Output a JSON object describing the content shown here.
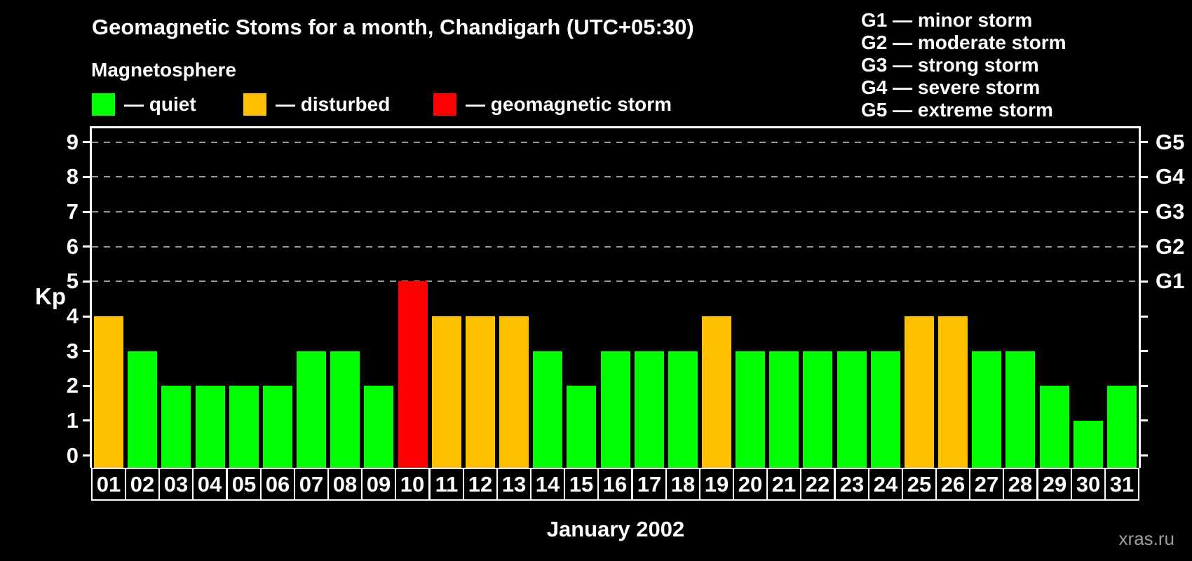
{
  "title": "Geomagnetic Stoms for a month, Chandigarh (UTC+05:30)",
  "subtitle": "Magnetosphere",
  "legend": {
    "quiet": "— quiet",
    "disturbed": "— disturbed",
    "storm": "— geomagnetic storm"
  },
  "g_legend": [
    "G1 — minor storm",
    "G2 — moderate storm",
    "G3 — strong storm",
    "G4 — severe storm",
    "G5 — extreme storm"
  ],
  "colors": {
    "quiet": "#00ff00",
    "disturbed": "#ffc000",
    "storm": "#ff0000",
    "background": "#000000",
    "axis": "#ffffff",
    "grid": "#999999",
    "watermark": "#9e9e9e"
  },
  "axis": {
    "ylabel": "Kp",
    "yticks": [
      0,
      1,
      2,
      3,
      4,
      5,
      6,
      7,
      8,
      9
    ],
    "right_labels": [
      {
        "text": "G1",
        "kp": 5
      },
      {
        "text": "G2",
        "kp": 6
      },
      {
        "text": "G3",
        "kp": 7
      },
      {
        "text": "G4",
        "kp": 8
      },
      {
        "text": "G5",
        "kp": 9
      }
    ],
    "xlabel": "January 2002"
  },
  "watermark": "xras.ru",
  "chart_data": {
    "type": "bar",
    "title": "Geomagnetic Stoms for a month, Chandigarh (UTC+05:30)",
    "xlabel": "January 2002",
    "ylabel": "Kp",
    "ylim": [
      -0.35,
      9.4
    ],
    "grid": "dashed horizontal at storm levels only",
    "gridlines_at": [
      5,
      6,
      7,
      8,
      9
    ],
    "legend_position": "top",
    "categories": [
      "01",
      "02",
      "03",
      "04",
      "05",
      "06",
      "07",
      "08",
      "09",
      "10",
      "11",
      "12",
      "13",
      "14",
      "15",
      "16",
      "17",
      "18",
      "19",
      "20",
      "21",
      "22",
      "23",
      "24",
      "25",
      "26",
      "27",
      "28",
      "29",
      "30",
      "31"
    ],
    "values": [
      4,
      3,
      2,
      2,
      2,
      2,
      3,
      3,
      2,
      5,
      4,
      4,
      4,
      3,
      2,
      3,
      3,
      3,
      4,
      3,
      3,
      3,
      3,
      3,
      4,
      4,
      3,
      3,
      2,
      1,
      2
    ],
    "conditions": [
      "disturbed",
      "quiet",
      "quiet",
      "quiet",
      "quiet",
      "quiet",
      "quiet",
      "quiet",
      "quiet",
      "storm",
      "disturbed",
      "disturbed",
      "disturbed",
      "quiet",
      "quiet",
      "quiet",
      "quiet",
      "quiet",
      "disturbed",
      "quiet",
      "quiet",
      "quiet",
      "quiet",
      "quiet",
      "disturbed",
      "disturbed",
      "quiet",
      "quiet",
      "quiet",
      "quiet",
      "quiet"
    ]
  }
}
